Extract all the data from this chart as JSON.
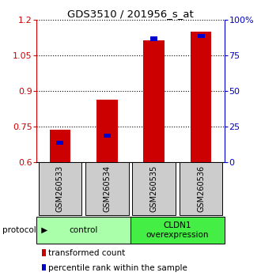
{
  "title": "GDS3510 / 201956_s_at",
  "samples": [
    "GSM260533",
    "GSM260534",
    "GSM260535",
    "GSM260536"
  ],
  "red_values": [
    0.735,
    0.862,
    1.112,
    1.148
  ],
  "blue_percentiles": [
    15,
    20,
    88,
    90
  ],
  "ylim_left": [
    0.6,
    1.2
  ],
  "yticks_left": [
    0.6,
    0.75,
    0.9,
    1.05,
    1.2
  ],
  "yticks_right": [
    0,
    25,
    50,
    75,
    100
  ],
  "protocol_label": "protocol",
  "legend_red": "transformed count",
  "legend_blue": "percentile rank within the sample",
  "bar_width": 0.45,
  "blue_bar_width": 0.15,
  "red_color": "#cc0000",
  "blue_color": "#0000cc",
  "axis_color_left": "#cc0000",
  "axis_color_right": "#0000cc",
  "sample_box_color": "#cccccc",
  "group_colors": [
    "#aaffaa",
    "#44ee44"
  ],
  "group_labels": [
    "control",
    "CLDN1\noverexpression"
  ],
  "bar_bottom": 0.6
}
